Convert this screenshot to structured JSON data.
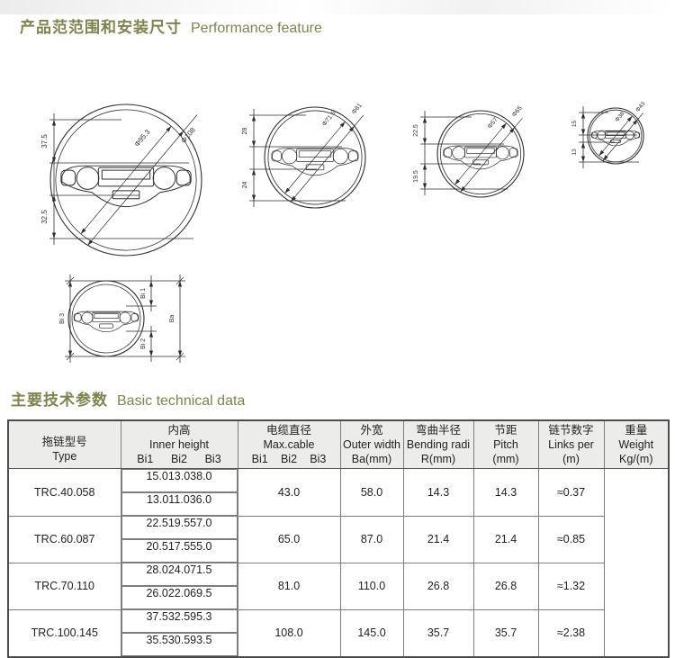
{
  "page": {
    "title1_zh": "产品范范围和安装尺寸",
    "title1_en": "Performance feature",
    "title2_zh": "主要技术参数",
    "title2_en": "Basic technical data",
    "accent_color": "#80834d",
    "line_color": "#2e2e2e"
  },
  "drawings": [
    {
      "dim_top": "37.5",
      "dim_bottom": "32.5",
      "dia_inner": "Φ95.3",
      "dia_outer": "Φ108"
    },
    {
      "dim_top": "28",
      "dim_bottom": "24",
      "dia_inner": "Φ71.5",
      "dia_outer": "Φ81"
    },
    {
      "dim_top": "22.5",
      "dim_bottom": "19.5",
      "dia_inner": "Φ57",
      "dia_outer": "Φ65"
    },
    {
      "dim_top": "15",
      "dim_bottom": "13",
      "dia_inner": "Φ38",
      "dia_outer": "Φ43"
    }
  ],
  "legend_drawing": {
    "left": "Bi 3",
    "top_right": "Bi 1",
    "bottom_right": "Bi 2",
    "right": "Ba"
  },
  "table": {
    "columns": [
      {
        "zh": "拖链型号",
        "en": "Type",
        "unit": ""
      },
      {
        "zh": "内高",
        "en": "Inner height",
        "unit": [
          "Bi1",
          "Bi2",
          "Bi3"
        ]
      },
      {
        "zh": "电缆直径",
        "en": "Max.cable",
        "unit": [
          "Bi1",
          "Bi2",
          "Bi3"
        ]
      },
      {
        "zh": "外宽",
        "en": "Outer width",
        "unit": "Ba(mm)"
      },
      {
        "zh": "弯曲半径",
        "en": "Bending radi",
        "unit": "R(mm)"
      },
      {
        "zh": "节距",
        "en": "Pitch",
        "unit": "(mm)"
      },
      {
        "zh": "链节数字",
        "en": "Links per",
        "unit": "(m)"
      },
      {
        "zh": "重量",
        "en": "Weight",
        "unit": "Kg/(m)"
      }
    ],
    "rows": [
      [
        "TRC.40.058",
        [
          "15.0",
          "13.0",
          "38.0"
        ],
        [
          "13.0",
          "11.0",
          "36.0"
        ],
        "43.0",
        "58.0",
        "14.3",
        "14.3",
        "≈0.37"
      ],
      [
        "TRC.60.087",
        [
          "22.5",
          "19.5",
          "57.0"
        ],
        [
          "20.5",
          "17.5",
          "55.0"
        ],
        "65.0",
        "87.0",
        "21.4",
        "21.4",
        "≈0.85"
      ],
      [
        "TRC.70.110",
        [
          "28.0",
          "24.0",
          "71.5"
        ],
        [
          "26.0",
          "22.0",
          "69.5"
        ],
        "81.0",
        "110.0",
        "26.8",
        "26.8",
        "≈1.32"
      ],
      [
        "TRC.100.145",
        [
          "37.5",
          "32.5",
          "95.3"
        ],
        [
          "35.5",
          "30.5",
          "93.5"
        ],
        "108.0",
        "145.0",
        "35.7",
        "35.7",
        "≈2.38"
      ]
    ]
  }
}
